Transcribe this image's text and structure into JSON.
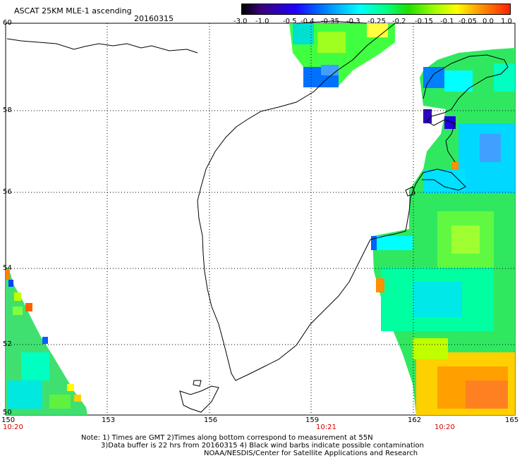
{
  "header": {
    "title": "ASCAT 25KM MLE-1 ascending",
    "date": "20160315"
  },
  "colorbar": {
    "labels": [
      "-3.0",
      "-1.0",
      "-0.5",
      "-0.4",
      "-0.35",
      "-0.3",
      "-0.25",
      "-0.2",
      "-0.15",
      "-0.1",
      "-0.05",
      "0.0",
      "1.0"
    ]
  },
  "axes": {
    "lat_labels": [
      "60",
      "58",
      "56",
      "54",
      "52",
      "50"
    ],
    "lon_labels": [
      "150",
      "153",
      "156",
      "159",
      "162",
      "165"
    ],
    "time_labels": [
      "10:20",
      "10:21",
      "10:20"
    ]
  },
  "footer": {
    "line1": "Note: 1) Times are GMT 2)Times along bottom correspond to measurement at 55N",
    "line2": "3)Data buffer is 22 hrs from 20160315 4) Black wind barbs indicate possible contamination",
    "line3": "NOAA/NESDIS/Center for Satellite Applications and Research"
  },
  "colors": {
    "coast": "#000000",
    "grid": "#000000",
    "time_text": "#d40000"
  }
}
